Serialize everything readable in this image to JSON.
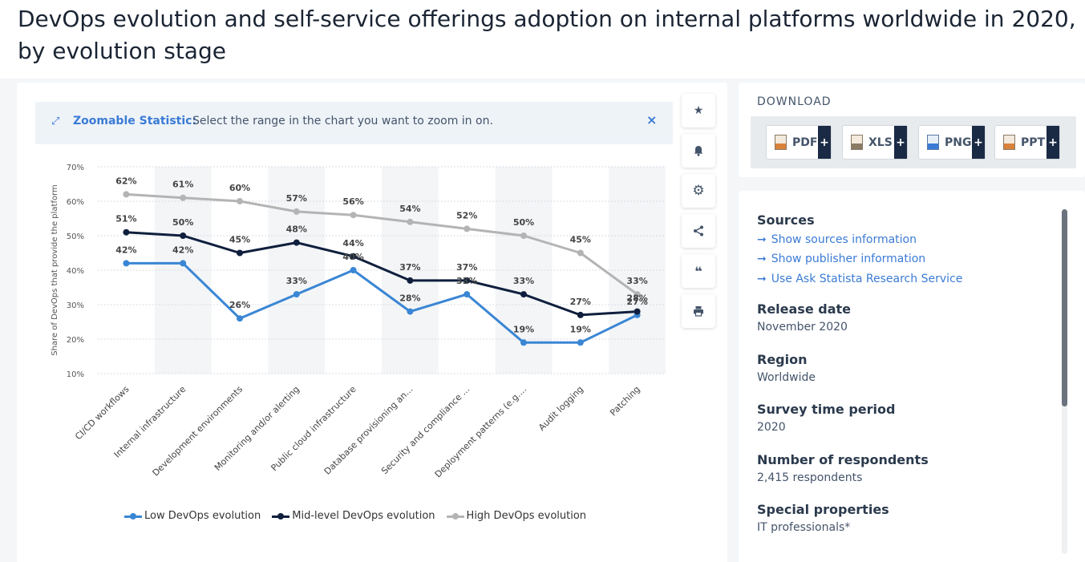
{
  "title": "DevOps evolution and self-service offerings adoption on internal platforms worldwide in 2020, by evolution stage",
  "zoom_banner": {
    "icon": "expand-icon",
    "label": "Zoomable Statistic:",
    "text": "Select the range in the chart you want to zoom in on.",
    "close": "×"
  },
  "tools": [
    {
      "name": "star-icon",
      "glyph": "★"
    },
    {
      "name": "bell-icon",
      "glyph": "🔔"
    },
    {
      "name": "gear-icon",
      "glyph": "⚙"
    },
    {
      "name": "share-icon",
      "glyph": "⋖"
    },
    {
      "name": "quote-icon",
      "glyph": "❝"
    },
    {
      "name": "print-icon",
      "glyph": "⎙"
    }
  ],
  "download": {
    "title": "DOWNLOAD",
    "buttons": [
      {
        "label": "PDF",
        "icon": "pdf-file-icon",
        "color": "#d9823b"
      },
      {
        "label": "XLS",
        "icon": "xls-file-icon",
        "color": "#8a7a66"
      },
      {
        "label": "PNG",
        "icon": "png-file-icon",
        "color": "#3a7bd5"
      },
      {
        "label": "PPT",
        "icon": "ppt-file-icon",
        "color": "#d9823b"
      }
    ],
    "plus": "+"
  },
  "sources": {
    "heading": "Sources",
    "links": [
      "Show sources information",
      "Show publisher information",
      "Use Ask Statista Research Service"
    ]
  },
  "details": [
    {
      "heading": "Release date",
      "value": "November 2020"
    },
    {
      "heading": "Region",
      "value": "Worldwide"
    },
    {
      "heading": "Survey time period",
      "value": "2020"
    },
    {
      "heading": "Number of respondents",
      "value": "2,415 respondents"
    },
    {
      "heading": "Special properties",
      "value": "IT professionals*"
    }
  ],
  "chart_data": {
    "type": "line",
    "ylabel": "Share of DevOps that provide the platform",
    "ylim": [
      10,
      70
    ],
    "yticks": [
      "10%",
      "20%",
      "30%",
      "40%",
      "50%",
      "60%",
      "70%"
    ],
    "categories": [
      "CI/CD workflows",
      "Internal infrastructure",
      "Development environments",
      "Monitoring and/or alerting",
      "Public cloud infrastructure",
      "Database provisioning an...",
      "Security and compliance ...",
      "Deployment patterns (e.g....",
      "Audit logging",
      "Patching"
    ],
    "series": [
      {
        "name": "Low DevOps evolution",
        "color": "#3a86d4",
        "values": [
          42,
          42,
          26,
          33,
          40,
          28,
          33,
          19,
          19,
          27
        ]
      },
      {
        "name": "Mid-level DevOps evolution",
        "color": "#0f1f3d",
        "values": [
          51,
          50,
          45,
          48,
          44,
          37,
          37,
          33,
          27,
          28
        ]
      },
      {
        "name": "High DevOps evolution",
        "color": "#b4b4b4",
        "values": [
          62,
          61,
          60,
          57,
          56,
          54,
          52,
          50,
          45,
          33
        ]
      }
    ],
    "data_labels": [
      "42%",
      "42%",
      "26%",
      "33%",
      "40%",
      "28%",
      "33%",
      "19%",
      "19%",
      "27%",
      "51%",
      "50%",
      "45%",
      "48%",
      "44%",
      "37%",
      "37%",
      "33%",
      "27%",
      "28%",
      "62%",
      "61%",
      "60%",
      "57%",
      "56%",
      "54%",
      "52%",
      "50%",
      "45%",
      "33%"
    ],
    "legend": "bottom",
    "grid": true
  }
}
